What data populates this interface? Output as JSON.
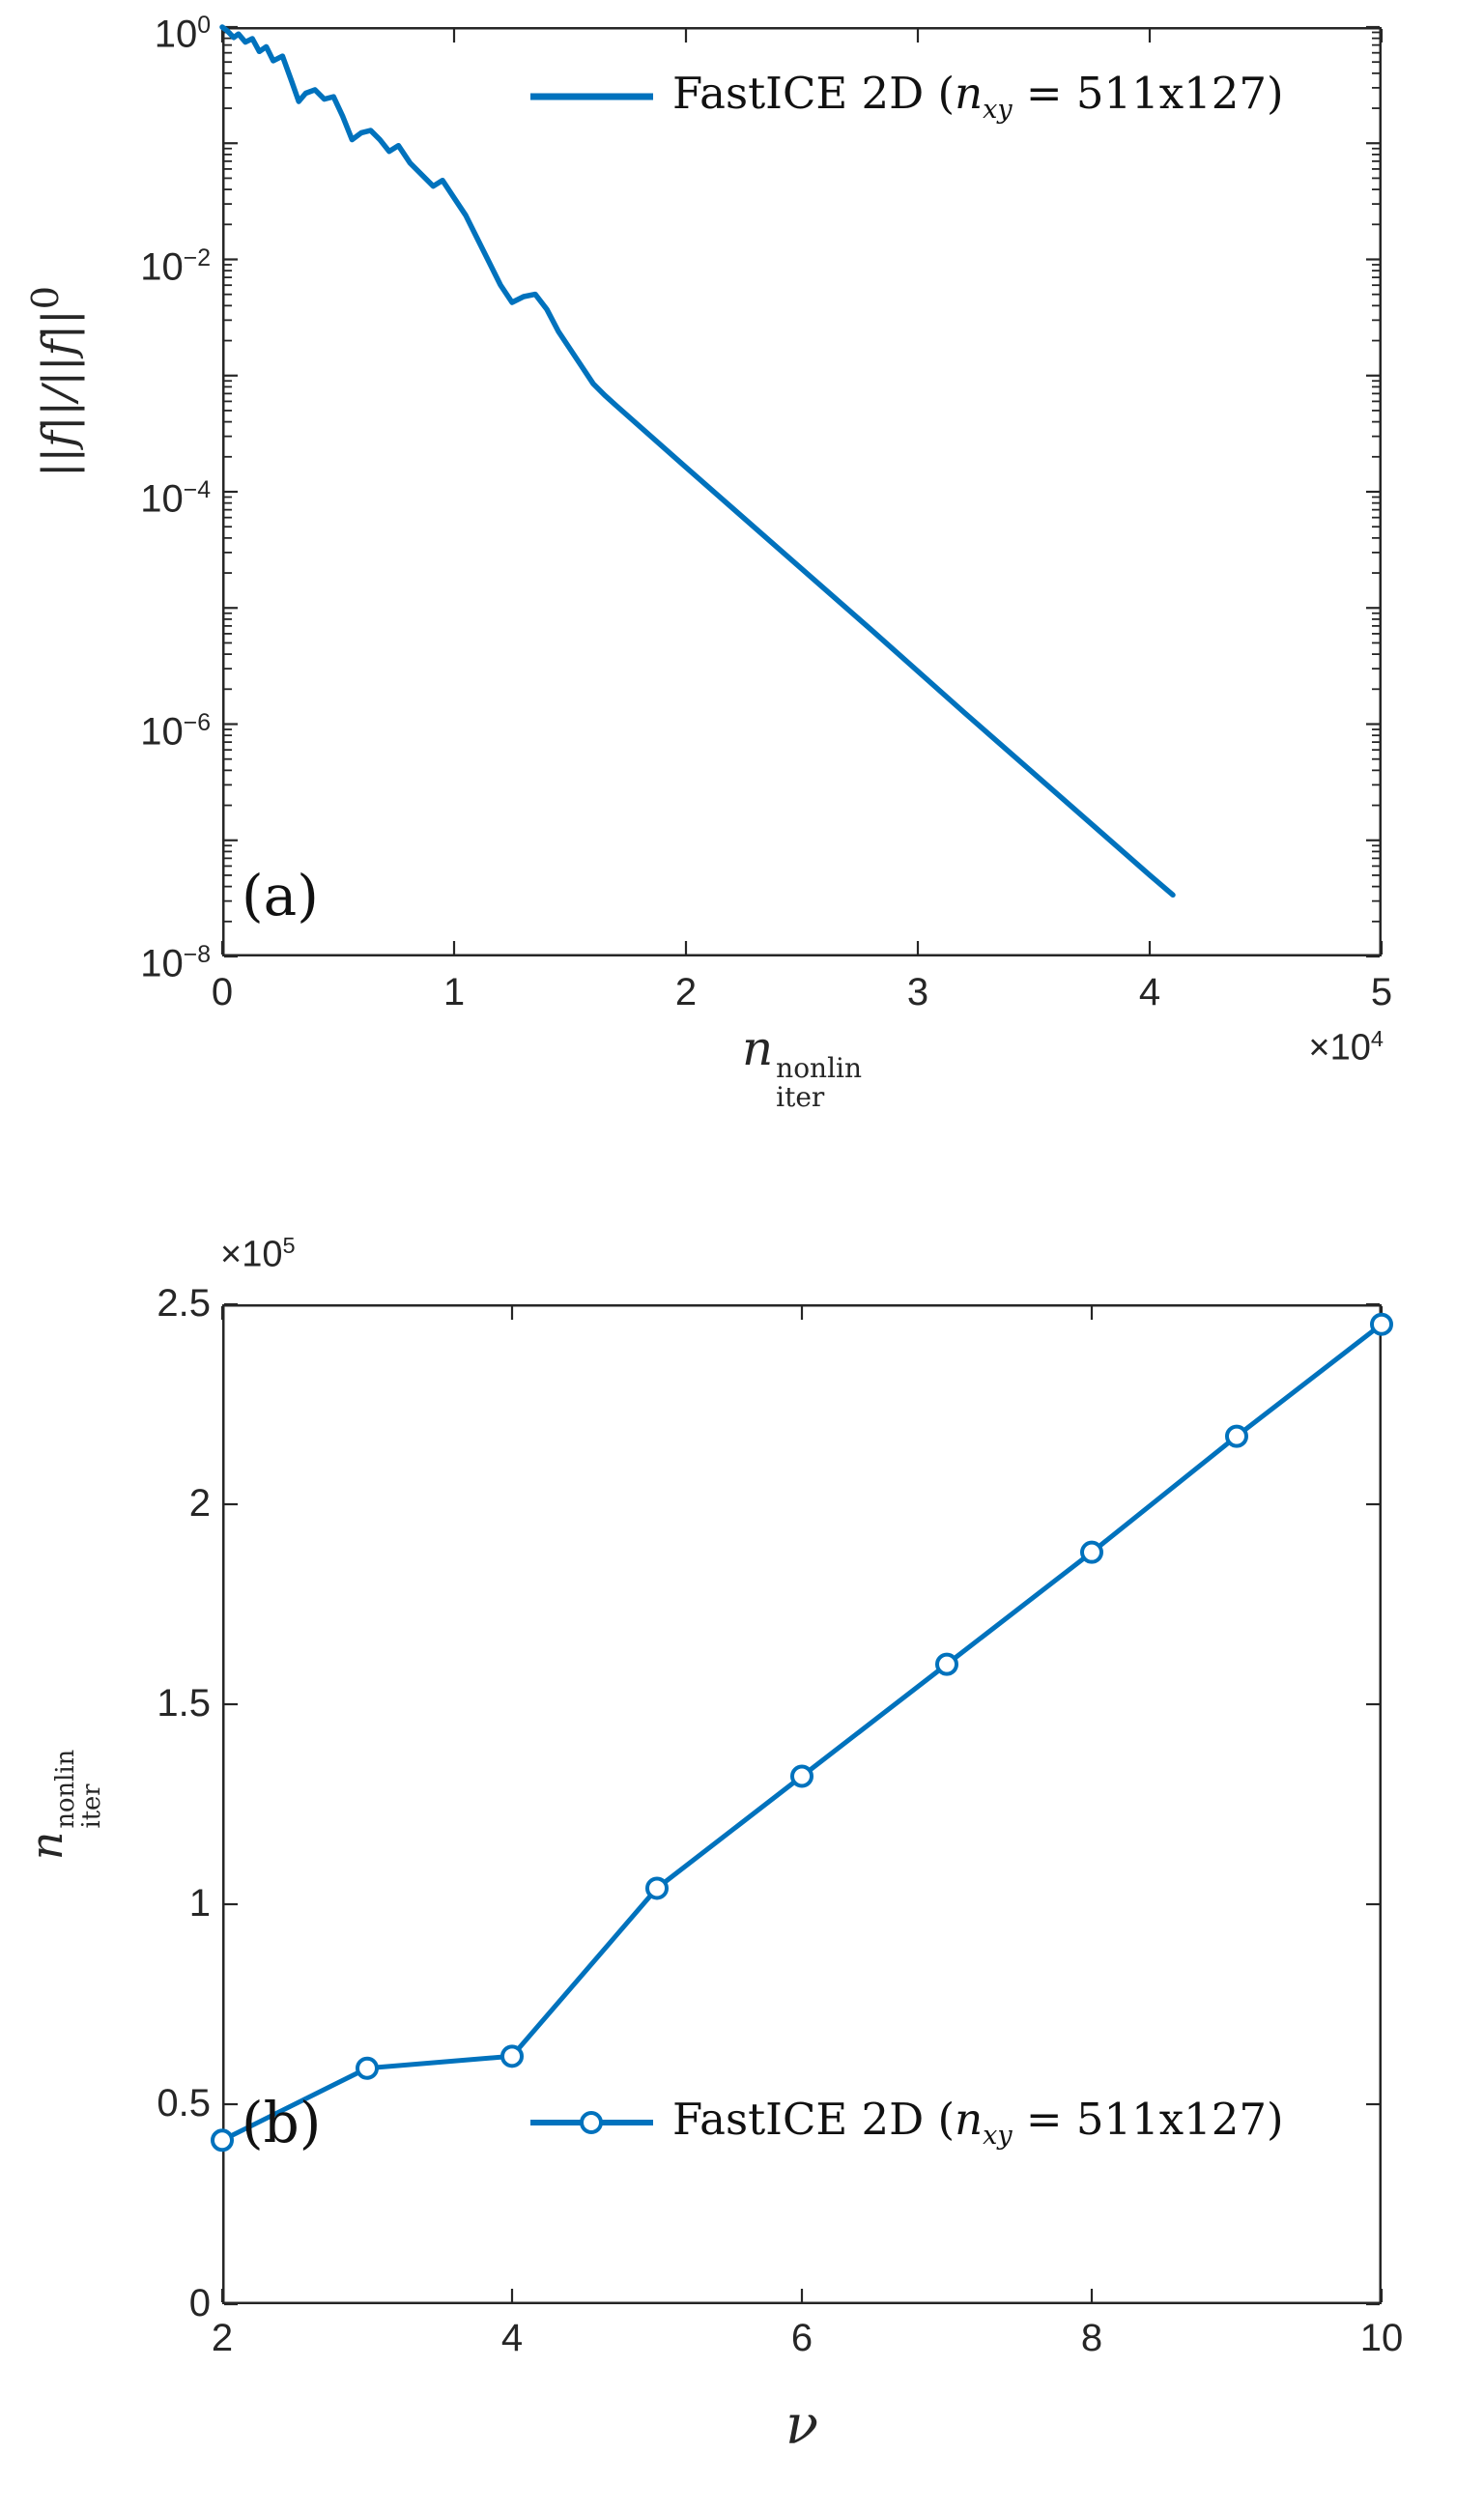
{
  "colors": {
    "line": "#0072BD",
    "axis": "#262626",
    "text": "#262626"
  },
  "legend": {
    "pre": "FastICE 2D (",
    "var": "n",
    "var_sub": "xy",
    "post": " = 511x127)"
  },
  "panel_a": {
    "label": "(a)",
    "ylabel": {
      "main": "||f||/||f||",
      "sup": "0"
    },
    "xlabel": {
      "base": "n",
      "sup": "nonlin",
      "sub": "iter"
    },
    "x_multiplier": {
      "base": "×10",
      "exp": "4"
    }
  },
  "panel_b": {
    "label": "(b)",
    "ylabel": {
      "base": "n",
      "sup": "nonlin",
      "sub": "iter"
    },
    "xlabel": "ν",
    "y_multiplier": {
      "base": "×10",
      "exp": "5"
    }
  },
  "chart_data": [
    {
      "id": "a",
      "type": "line",
      "title": "",
      "xlabel": "n_iter^nonlin (units of 10^4)",
      "ylabel": "||f||/||f||^0",
      "yscale": "log",
      "grid": false,
      "xlim_1e4": [
        0,
        5
      ],
      "ylim": [
        1e-08,
        1
      ],
      "xticks_1e4": [
        0,
        1,
        2,
        3,
        4,
        5
      ],
      "xtick_labels": [
        "0",
        "1",
        "2",
        "3",
        "4",
        "5"
      ],
      "ytick_log10": [
        0,
        -2,
        -4,
        -6,
        -8
      ],
      "ytick_labels": [
        {
          "base": "10",
          "exp": "0"
        },
        {
          "base": "10",
          "exp": "−2"
        },
        {
          "base": "10",
          "exp": "−4"
        },
        {
          "base": "10",
          "exp": "−6"
        },
        {
          "base": "10",
          "exp": "−8"
        }
      ],
      "unlabeled_decades": [
        -1,
        -3,
        -5,
        -7
      ],
      "legend": {
        "label": "FastICE 2D (n_xy = 511x127)",
        "position": "top-right-inside"
      },
      "series": [
        {
          "name": "FastICE 2D (n_xy = 511x127)",
          "x_1e4_log10y": [
            [
              0.0,
              0.0
            ],
            [
              0.02,
              -0.03
            ],
            [
              0.05,
              -0.09
            ],
            [
              0.07,
              -0.06
            ],
            [
              0.1,
              -0.13
            ],
            [
              0.13,
              -0.1
            ],
            [
              0.16,
              -0.21
            ],
            [
              0.19,
              -0.17
            ],
            [
              0.22,
              -0.29
            ],
            [
              0.26,
              -0.25
            ],
            [
              0.3,
              -0.47
            ],
            [
              0.33,
              -0.64
            ],
            [
              0.36,
              -0.57
            ],
            [
              0.4,
              -0.54
            ],
            [
              0.44,
              -0.62
            ],
            [
              0.48,
              -0.6
            ],
            [
              0.52,
              -0.77
            ],
            [
              0.56,
              -0.97
            ],
            [
              0.6,
              -0.91
            ],
            [
              0.64,
              -0.89
            ],
            [
              0.68,
              -0.97
            ],
            [
              0.72,
              -1.07
            ],
            [
              0.76,
              -1.02
            ],
            [
              0.81,
              -1.17
            ],
            [
              0.86,
              -1.27
            ],
            [
              0.91,
              -1.37
            ],
            [
              0.95,
              -1.32
            ],
            [
              1.0,
              -1.47
            ],
            [
              1.05,
              -1.62
            ],
            [
              1.1,
              -1.82
            ],
            [
              1.15,
              -2.02
            ],
            [
              1.2,
              -2.22
            ],
            [
              1.25,
              -2.37
            ],
            [
              1.3,
              -2.32
            ],
            [
              1.35,
              -2.3
            ],
            [
              1.4,
              -2.43
            ],
            [
              1.45,
              -2.62
            ],
            [
              1.5,
              -2.77
            ],
            [
              1.55,
              -2.92
            ],
            [
              1.6,
              -3.07
            ],
            [
              1.65,
              -3.17
            ],
            [
              1.7,
              -3.26
            ],
            [
              2.0,
              -3.79
            ],
            [
              2.4,
              -4.49
            ],
            [
              2.8,
              -5.19
            ],
            [
              3.2,
              -5.9
            ],
            [
              3.6,
              -6.6
            ],
            [
              4.0,
              -7.3
            ],
            [
              4.1,
              -7.47
            ]
          ]
        }
      ]
    },
    {
      "id": "b",
      "type": "line",
      "marker": "circle",
      "title": "",
      "xlabel": "ν",
      "ylabel": "n_iter^nonlin (units of 10^5)",
      "yscale": "linear",
      "grid": false,
      "xlim": [
        2,
        10
      ],
      "ylim_1e5": [
        0,
        2.5
      ],
      "xticks": [
        2,
        4,
        6,
        8,
        10
      ],
      "xtick_labels": [
        "2",
        "4",
        "6",
        "8",
        "10"
      ],
      "yticks_1e5": [
        0,
        0.5,
        1,
        1.5,
        2,
        2.5
      ],
      "ytick_labels": [
        "0",
        "0.5",
        "1",
        "1.5",
        "2",
        "2.5"
      ],
      "legend": {
        "label": "FastICE 2D (n_xy = 511x127)",
        "position": "bottom-center-inside"
      },
      "series": [
        {
          "name": "FastICE 2D (n_xy = 511x127)",
          "x": [
            2,
            3,
            4,
            5,
            6,
            7,
            8,
            9,
            10
          ],
          "y_1e5": [
            0.41,
            0.59,
            0.62,
            1.04,
            1.32,
            1.6,
            1.88,
            2.17,
            2.45
          ]
        }
      ]
    }
  ]
}
